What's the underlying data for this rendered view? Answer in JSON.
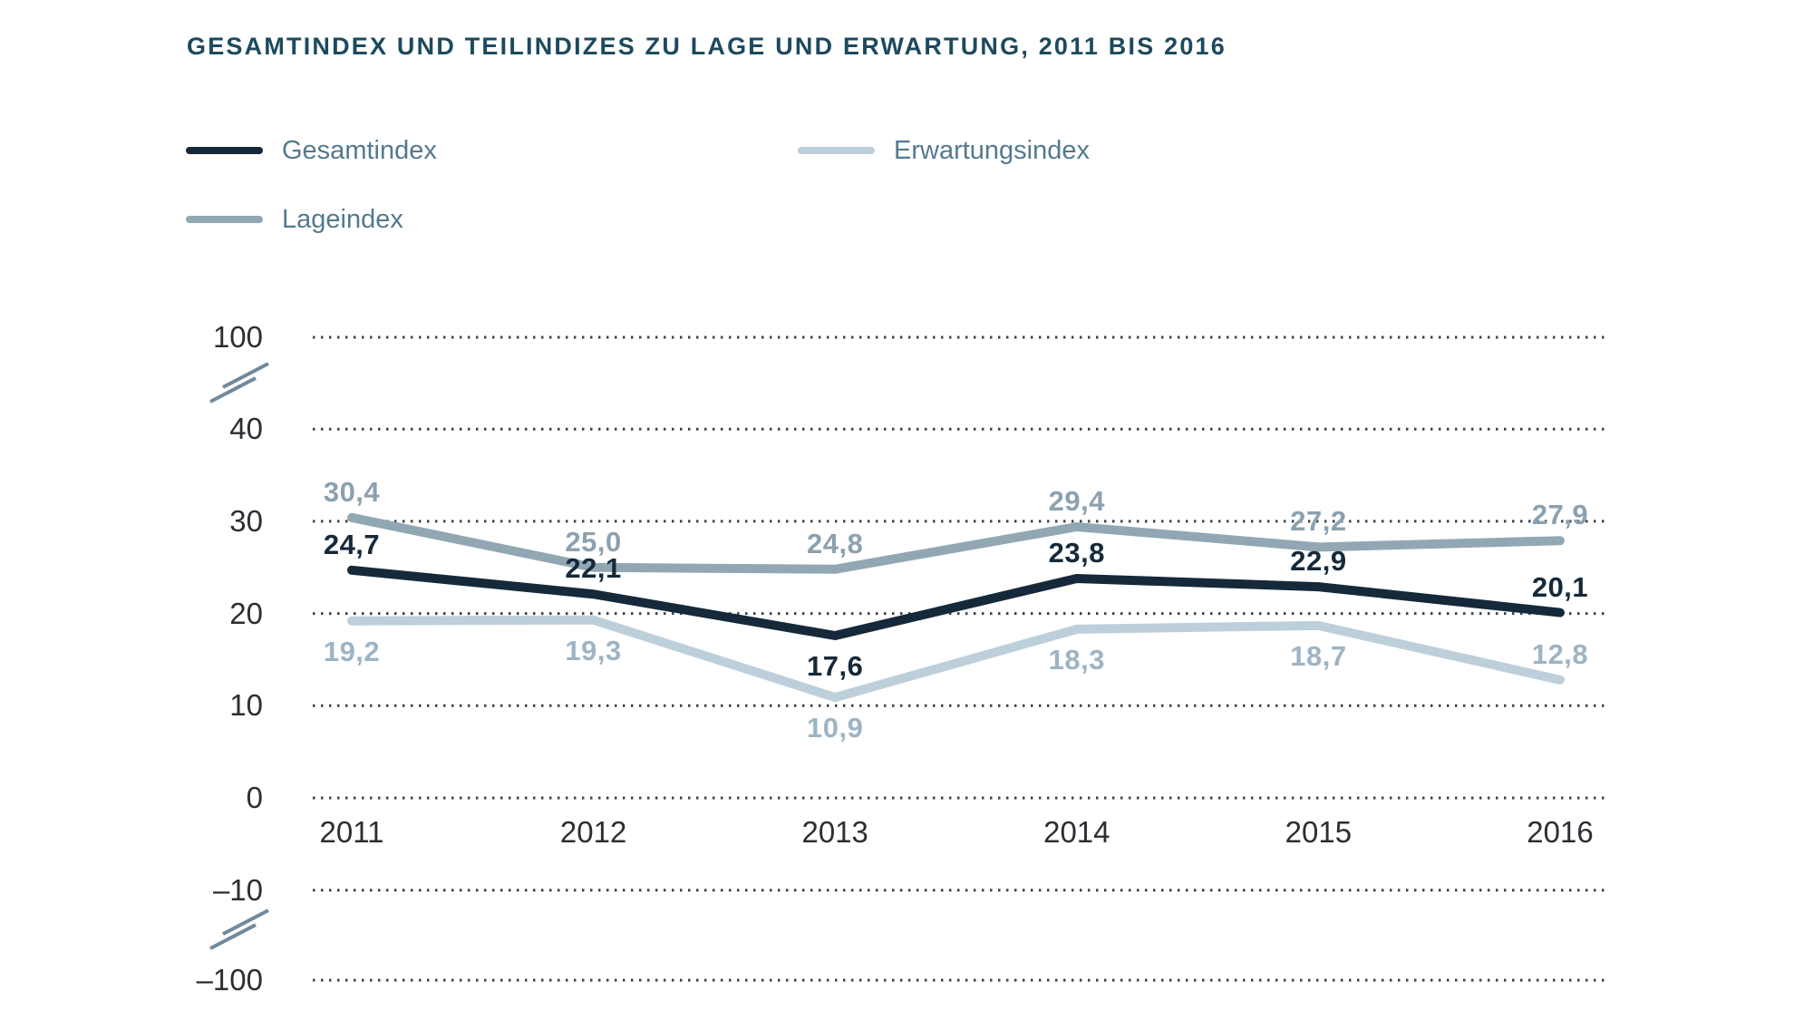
{
  "header": {
    "title": "GESAMTINDEX UND TEILINDIZES ZU LAGE UND ERWARTUNG, 2011 BIS 2016"
  },
  "legend": {
    "items": [
      {
        "label": "Gesamtindex",
        "color": "#15293a"
      },
      {
        "label": "Erwartungsindex",
        "color": "#bdcfdb"
      },
      {
        "label": "Lageindex",
        "color": "#92a7b4"
      }
    ]
  },
  "colors": {
    "title_text": "#1c4a5e",
    "legend_text": "#54798e",
    "axis_text": "#2b2e33",
    "gridline": "#3e4146",
    "axis_break_mark": "#72899a",
    "background": "#ffffff"
  },
  "chart_data": {
    "type": "line",
    "title": "GESAMTINDEX UND TEILINDIZES ZU LAGE UND ERWARTUNG, 2011 BIS 2016",
    "categories": [
      "2011",
      "2012",
      "2013",
      "2014",
      "2015",
      "2016"
    ],
    "series": [
      {
        "name": "Gesamtindex",
        "color": "#15293a",
        "label_color": "#15293a",
        "values": [
          24.7,
          22.1,
          17.6,
          23.8,
          22.9,
          20.1
        ],
        "label_positions": [
          "above",
          "above",
          "below",
          "above",
          "above",
          "above"
        ]
      },
      {
        "name": "Lageindex",
        "color": "#92a7b4",
        "label_color": "#8ba1b0",
        "values": [
          30.4,
          25.0,
          24.8,
          29.4,
          27.2,
          27.9
        ],
        "label_positions": [
          "above",
          "above",
          "above",
          "above",
          "above",
          "above"
        ]
      },
      {
        "name": "Erwartungsindex",
        "color": "#bdcfdb",
        "label_color": "#9db4c4",
        "values": [
          19.2,
          19.3,
          10.9,
          18.3,
          18.7,
          12.8
        ],
        "label_positions": [
          "below",
          "below",
          "below",
          "below",
          "below",
          "above"
        ]
      }
    ],
    "decimal_separator": ",",
    "y_ticks": [
      {
        "value": 100,
        "label": "100"
      },
      {
        "value": 40,
        "label": "40"
      },
      {
        "value": 30,
        "label": "30"
      },
      {
        "value": 20,
        "label": "20"
      },
      {
        "value": 10,
        "label": "10"
      },
      {
        "value": 0,
        "label": "0"
      },
      {
        "value": -10,
        "label": "–10"
      },
      {
        "value": -100,
        "label": "–100"
      }
    ],
    "ylim": [
      -100,
      100
    ],
    "y_axis_breaks": [
      [
        40,
        100
      ],
      [
        -100,
        -10
      ]
    ],
    "grid": "horizontal dotted lines",
    "legend_position": "top-left, two columns",
    "xlabel": "",
    "ylabel": ""
  }
}
